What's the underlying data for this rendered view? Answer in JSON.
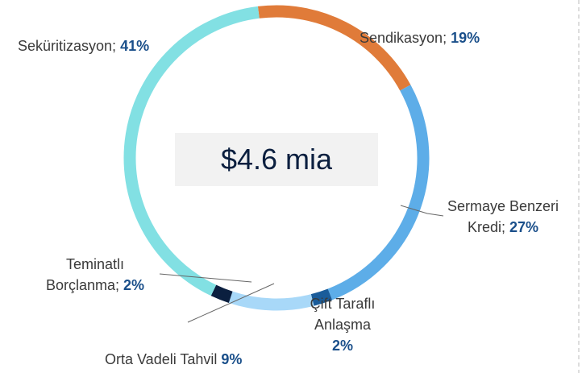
{
  "chart_data": {
    "type": "donut",
    "center_label": "$4.6 mia",
    "categories": [
      "Sendikasyon;",
      "Sermaye Benzeri Kredi;",
      "Çift Taraflı Anlaşma",
      "Orta Vadeli Tahvil",
      "Teminatlı Borçlanma;",
      "Seküritizasyon;"
    ],
    "values": [
      19,
      27,
      2,
      9,
      2,
      41
    ],
    "value_labels": [
      "19%",
      "27%",
      "2%",
      "9%",
      "2%",
      "41%"
    ],
    "colors": [
      "#e07b39",
      "#5dade8",
      "#1a5c9a",
      "#a8d8f8",
      "#0b1f3f",
      "#82e0e3"
    ]
  }
}
